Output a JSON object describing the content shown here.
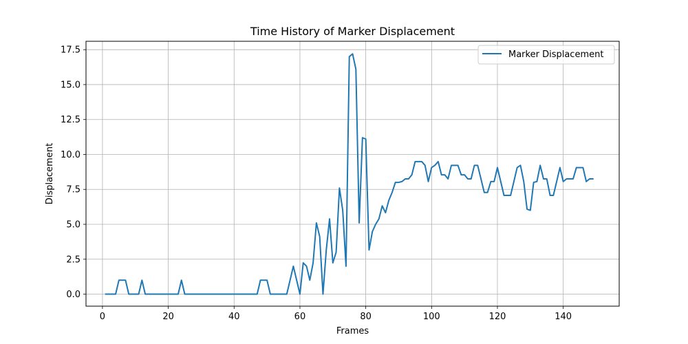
{
  "chart_data": {
    "type": "line",
    "title": "Time History of Marker Displacement",
    "xlabel": "Frames",
    "ylabel": "Displacement",
    "xlim": [
      -5,
      157
    ],
    "ylim": [
      -0.86,
      18.1
    ],
    "xticks": [
      0,
      20,
      40,
      60,
      80,
      100,
      120,
      140
    ],
    "xtick_labels": [
      "0",
      "20",
      "40",
      "60",
      "80",
      "100",
      "120",
      "140"
    ],
    "yticks": [
      0,
      2.5,
      5,
      7.5,
      10,
      12.5,
      15,
      17.5
    ],
    "ytick_labels": [
      "0.0",
      "2.5",
      "5.0",
      "7.5",
      "10.0",
      "12.5",
      "15.0",
      "17.5"
    ],
    "grid": true,
    "legend_position": "top-right",
    "series": [
      {
        "name": "Marker Displacement",
        "color": "#1f77b4",
        "x": [
          1,
          2,
          3,
          4,
          5,
          6,
          7,
          8,
          9,
          10,
          11,
          12,
          13,
          14,
          15,
          16,
          17,
          18,
          19,
          20,
          21,
          22,
          23,
          24,
          25,
          26,
          27,
          28,
          29,
          30,
          31,
          32,
          33,
          34,
          35,
          36,
          37,
          38,
          39,
          40,
          41,
          42,
          43,
          44,
          45,
          46,
          47,
          48,
          49,
          50,
          51,
          52,
          53,
          54,
          55,
          56,
          57,
          58,
          59,
          60,
          61,
          62,
          63,
          64,
          65,
          66,
          67,
          68,
          69,
          70,
          71,
          72,
          73,
          74,
          75,
          76,
          77,
          78,
          79,
          80,
          81,
          82,
          83,
          84,
          85,
          86,
          87,
          88,
          89,
          90,
          91,
          92,
          93,
          94,
          95,
          96,
          97,
          98,
          99,
          100,
          101,
          102,
          103,
          104,
          105,
          106,
          107,
          108,
          109,
          110,
          111,
          112,
          113,
          114,
          115,
          116,
          117,
          118,
          119,
          120,
          121,
          122,
          123,
          124,
          125,
          126,
          127,
          128,
          129,
          130,
          131,
          132,
          133,
          134,
          135,
          136,
          137,
          138,
          139,
          140,
          141,
          142,
          143,
          144,
          145,
          146,
          147,
          148,
          149
        ],
        "y": [
          0,
          0,
          0,
          0,
          1,
          1,
          1,
          0,
          0,
          0,
          0,
          1,
          0,
          0,
          0,
          0,
          0,
          0,
          0,
          0,
          0,
          0,
          0,
          1,
          0,
          0,
          0,
          0,
          0,
          0,
          0,
          0,
          0,
          0,
          0,
          0,
          0,
          0,
          0,
          0,
          0,
          0,
          0,
          0,
          0,
          0,
          0,
          1,
          1,
          1,
          0,
          0,
          0,
          0,
          0,
          0,
          1,
          2,
          1,
          0,
          2.24,
          2,
          1,
          2.24,
          5.1,
          4.12,
          0,
          3.16,
          5.39,
          2.24,
          3.0,
          7.6,
          6.0,
          2.0,
          17.0,
          17.2,
          16.1,
          5.1,
          11.2,
          11.1,
          3.16,
          4.47,
          5.0,
          5.39,
          6.32,
          5.83,
          6.71,
          7.28,
          8.0,
          8.0,
          8.06,
          8.25,
          8.25,
          8.54,
          9.49,
          9.49,
          9.49,
          9.22,
          8.06,
          9.06,
          9.22,
          9.49,
          8.54,
          8.54,
          8.25,
          9.22,
          9.22,
          9.22,
          8.54,
          8.54,
          8.25,
          8.25,
          9.22,
          9.22,
          8.25,
          7.28,
          7.28,
          8.06,
          8.06,
          9.06,
          8.06,
          7.07,
          7.07,
          7.07,
          8.06,
          9.06,
          9.22,
          8.06,
          6.08,
          6.0,
          8.0,
          8.06,
          9.22,
          8.25,
          8.25,
          7.07,
          7.07,
          8.06,
          9.06,
          8.06,
          8.25,
          8.25,
          8.25,
          9.06,
          9.06,
          9.06,
          8.06,
          8.25,
          8.25
        ]
      }
    ]
  }
}
